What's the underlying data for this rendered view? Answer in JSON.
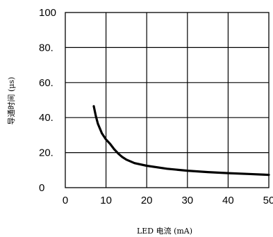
{
  "chart_data": {
    "type": "line",
    "title": "",
    "xlabel": "LED 电流 (mA)",
    "ylabel": "导通时间 (μs)",
    "xlim": [
      0,
      50
    ],
    "ylim": [
      0,
      100
    ],
    "x_ticks": [
      0,
      10,
      20,
      30,
      40,
      50
    ],
    "y_ticks": [
      0,
      20,
      40,
      60,
      80,
      100
    ],
    "x_tick_labels": [
      "0",
      "10",
      "20",
      "30",
      "40",
      "50"
    ],
    "y_tick_labels": [
      "0",
      "20.",
      "40.",
      "60.",
      "80.",
      "100"
    ],
    "grid": true,
    "legend": "none",
    "series": [
      {
        "color": "#000000",
        "x": [
          7,
          7.5,
          8,
          9,
          10,
          11,
          12,
          13,
          14,
          15,
          17,
          20,
          25,
          30,
          35,
          40,
          45,
          50
        ],
        "y": [
          46.5,
          41,
          36.5,
          31,
          27.5,
          25,
          22,
          19.5,
          17.5,
          16,
          14,
          12.5,
          10.8,
          9.7,
          8.9,
          8.3,
          7.8,
          7.3
        ]
      }
    ]
  }
}
